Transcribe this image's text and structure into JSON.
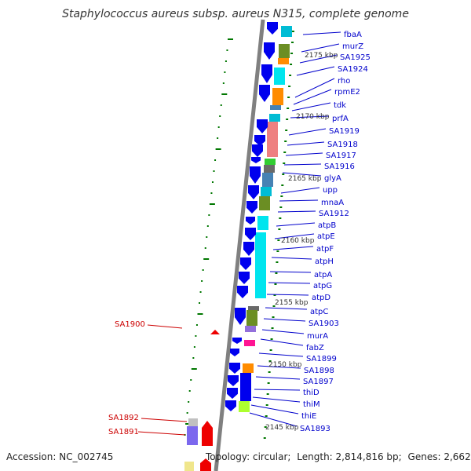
{
  "title": "Staphylococcus aureus subsp. aureus N315, complete genome",
  "footer": {
    "accession": "Accession: NC_002745",
    "topology_label": "Topology:",
    "topology": "circular;",
    "length_label": "Length:",
    "length": "2,814,816 bp;",
    "genes_label": "Genes:",
    "genes": "2,662"
  },
  "colors": {
    "backbone": "#808080",
    "forward_gene": "#0000ee",
    "reverse_gene": "#ee0000",
    "label_forward": "#0000cc",
    "label_reverse": "#cc0000",
    "tick": "#007700"
  },
  "kbp_marks": [
    "2175 kbp",
    "2170 kbp",
    "2165 kbp",
    "2160 kbp",
    "2155 kbp",
    "2150 kbp",
    "2145 kbp"
  ],
  "gene_labels_right": [
    "fbaA",
    "murZ",
    "SA1925",
    "SA1924",
    "rho",
    "rpmE2",
    "tdk",
    "prfA",
    "SA1919",
    "SA1918",
    "SA1917",
    "SA1916",
    "glyA",
    "upp",
    "mnaA",
    "SA1912",
    "atpB",
    "atpE",
    "atpF",
    "atpH",
    "atpA",
    "atpG",
    "atpD",
    "atpC",
    "SA1903",
    "murA",
    "fabZ",
    "SA1899",
    "SA1898",
    "SA1897",
    "thiD",
    "thiM",
    "thiE",
    "SA1893"
  ],
  "gene_labels_left": [
    "SA1900",
    "SA1892",
    "SA1891"
  ]
}
